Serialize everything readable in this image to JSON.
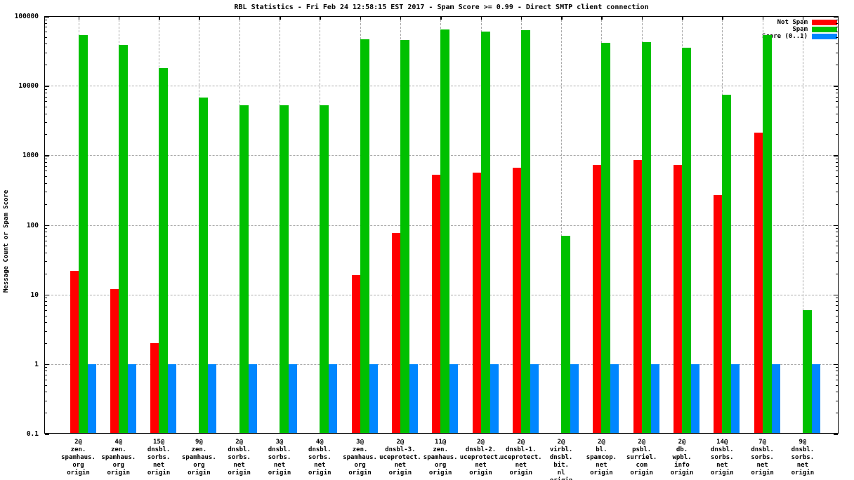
{
  "chart_data": {
    "type": "bar",
    "title": "RBL Statistics - Fri Feb 24 12:58:15 EST 2017 - Spam Score >= 0.99 - Direct SMTP client connection",
    "ylabel": "Message Count or Spam Score",
    "xlabel": "",
    "y_scale": "log",
    "ylim": [
      0.1,
      100000
    ],
    "grid": true,
    "legend_position": "top-right-inside",
    "y_ticks": [
      {
        "label": "100000",
        "value": 100000
      },
      {
        "label": "10000",
        "value": 10000
      },
      {
        "label": "1000",
        "value": 1000
      },
      {
        "label": "100",
        "value": 100
      },
      {
        "label": "10",
        "value": 10
      },
      {
        "label": "1",
        "value": 1
      },
      {
        "label": "0.1",
        "value": 0.1
      }
    ],
    "series": [
      {
        "name": "Not Spam",
        "key": "not_spam",
        "color": "#ff0000"
      },
      {
        "name": "Spam",
        "key": "spam",
        "color": "#00c000"
      },
      {
        "name": "Score (0..1)",
        "key": "score",
        "color": "#0086ff"
      }
    ],
    "groups": [
      {
        "label": [
          "2@",
          "zen.",
          "spamhaus.",
          "org",
          "origin"
        ],
        "not_spam": 22,
        "spam": 53000,
        "score": 1
      },
      {
        "label": [
          "4@",
          "zen.",
          "spamhaus.",
          "org",
          "origin"
        ],
        "not_spam": 12,
        "spam": 39000,
        "score": 1
      },
      {
        "label": [
          "15@",
          "dnsbl.",
          "sorbs.",
          "net",
          "origin"
        ],
        "not_spam": 2,
        "spam": 18000,
        "score": 1
      },
      {
        "label": [
          "9@",
          "zen.",
          "spamhaus.",
          "org",
          "origin"
        ],
        "not_spam": null,
        "spam": 6700,
        "score": 1
      },
      {
        "label": [
          "2@",
          "dnsbl.",
          "sorbs.",
          "net",
          "origin"
        ],
        "not_spam": null,
        "spam": 5300,
        "score": 1
      },
      {
        "label": [
          "3@",
          "dnsbl.",
          "sorbs.",
          "net",
          "origin"
        ],
        "not_spam": null,
        "spam": 5300,
        "score": 1
      },
      {
        "label": [
          "4@",
          "dnsbl.",
          "sorbs.",
          "net",
          "origin"
        ],
        "not_spam": null,
        "spam": 5300,
        "score": 1
      },
      {
        "label": [
          "3@",
          "zen.",
          "spamhaus.",
          "org",
          "origin"
        ],
        "not_spam": 19,
        "spam": 46000,
        "score": 1
      },
      {
        "label": [
          "2@",
          "dnsbl-3.",
          "uceprotect.",
          "net",
          "origin"
        ],
        "not_spam": 77,
        "spam": 45000,
        "score": 1
      },
      {
        "label": [
          "11@",
          "zen.",
          "spamhaus.",
          "org",
          "origin"
        ],
        "not_spam": 530,
        "spam": 65000,
        "score": 1
      },
      {
        "label": [
          "2@",
          "dnsbl-2.",
          "uceprotect.",
          "net",
          "origin"
        ],
        "not_spam": 570,
        "spam": 60000,
        "score": 1
      },
      {
        "label": [
          "2@",
          "dnsbl-1.",
          "uceprotect.",
          "net",
          "origin"
        ],
        "not_spam": 670,
        "spam": 63000,
        "score": 1
      },
      {
        "label": [
          "2@",
          "virbl.",
          "dnsbl.",
          "bit.",
          "nl",
          "origin"
        ],
        "not_spam": null,
        "spam": 70,
        "score": 1
      },
      {
        "label": [
          "2@",
          "bl.",
          "spamcop.",
          "net",
          "origin"
        ],
        "not_spam": 720,
        "spam": 41000,
        "score": 1
      },
      {
        "label": [
          "2@",
          "psbl.",
          "surriel.",
          "com",
          "origin"
        ],
        "not_spam": 860,
        "spam": 42000,
        "score": 1
      },
      {
        "label": [
          "2@",
          "db.",
          "wpbl.",
          "info",
          "origin"
        ],
        "not_spam": 720,
        "spam": 35000,
        "score": 1
      },
      {
        "label": [
          "14@",
          "dnsbl.",
          "sorbs.",
          "net",
          "origin"
        ],
        "not_spam": 270,
        "spam": 7400,
        "score": 1
      },
      {
        "label": [
          "7@",
          "dnsbl.",
          "sorbs.",
          "net",
          "origin"
        ],
        "not_spam": 2100,
        "spam": 54000,
        "score": 1
      },
      {
        "label": [
          "9@",
          "dnsbl.",
          "sorbs.",
          "net",
          "origin"
        ],
        "not_spam": null,
        "spam": 6,
        "score": 1
      }
    ],
    "colors": {
      "not_spam": "#ff0000",
      "spam": "#00c000",
      "score": "#0086ff",
      "grid": "#a8a8a8",
      "text": "#000000",
      "background": "#ffffff"
    }
  }
}
